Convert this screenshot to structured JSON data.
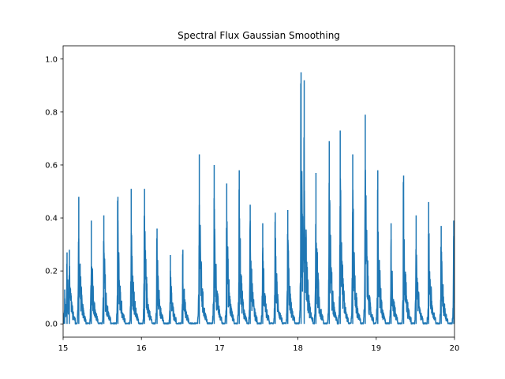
{
  "chart_data": {
    "type": "line",
    "title": "Spectral Flux Gaussian Smoothing",
    "xlabel": "",
    "ylabel": "",
    "xlim": [
      15,
      20
    ],
    "ylim": [
      -0.05,
      1.05
    ],
    "xticks": [
      15,
      16,
      17,
      18,
      19,
      20
    ],
    "yticks": [
      0.0,
      0.2,
      0.4,
      0.6,
      0.8,
      1.0
    ],
    "xtick_labels": [
      "15",
      "16",
      "17",
      "18",
      "19",
      "20"
    ],
    "ytick_labels": [
      "0.0",
      "0.2",
      "0.4",
      "0.6",
      "0.8",
      "1.0"
    ],
    "grid": false,
    "legend": "none",
    "series": [
      {
        "color": "#1f77b4",
        "peaks": [
          {
            "x": 15.02,
            "y": 0.13
          },
          {
            "x": 15.05,
            "y": 0.27
          },
          {
            "x": 15.08,
            "y": 0.28
          },
          {
            "x": 15.2,
            "y": 0.48
          },
          {
            "x": 15.36,
            "y": 0.39
          },
          {
            "x": 15.52,
            "y": 0.41
          },
          {
            "x": 15.7,
            "y": 0.48
          },
          {
            "x": 15.87,
            "y": 0.51
          },
          {
            "x": 16.04,
            "y": 0.51
          },
          {
            "x": 16.2,
            "y": 0.36
          },
          {
            "x": 16.37,
            "y": 0.26
          },
          {
            "x": 16.53,
            "y": 0.28
          },
          {
            "x": 16.74,
            "y": 0.64
          },
          {
            "x": 16.93,
            "y": 0.6
          },
          {
            "x": 17.09,
            "y": 0.53
          },
          {
            "x": 17.25,
            "y": 0.58
          },
          {
            "x": 17.39,
            "y": 0.45
          },
          {
            "x": 17.55,
            "y": 0.38
          },
          {
            "x": 17.71,
            "y": 0.42
          },
          {
            "x": 17.87,
            "y": 0.43
          },
          {
            "x": 18.04,
            "y": 0.95
          },
          {
            "x": 18.08,
            "y": 0.92
          },
          {
            "x": 18.23,
            "y": 0.57
          },
          {
            "x": 18.4,
            "y": 0.69
          },
          {
            "x": 18.54,
            "y": 0.73
          },
          {
            "x": 18.7,
            "y": 0.64
          },
          {
            "x": 18.86,
            "y": 0.79
          },
          {
            "x": 19.02,
            "y": 0.58
          },
          {
            "x": 19.19,
            "y": 0.38
          },
          {
            "x": 19.35,
            "y": 0.56
          },
          {
            "x": 19.51,
            "y": 0.41
          },
          {
            "x": 19.67,
            "y": 0.46
          },
          {
            "x": 19.83,
            "y": 0.37
          },
          {
            "x": 19.99,
            "y": 0.39
          }
        ]
      }
    ]
  }
}
